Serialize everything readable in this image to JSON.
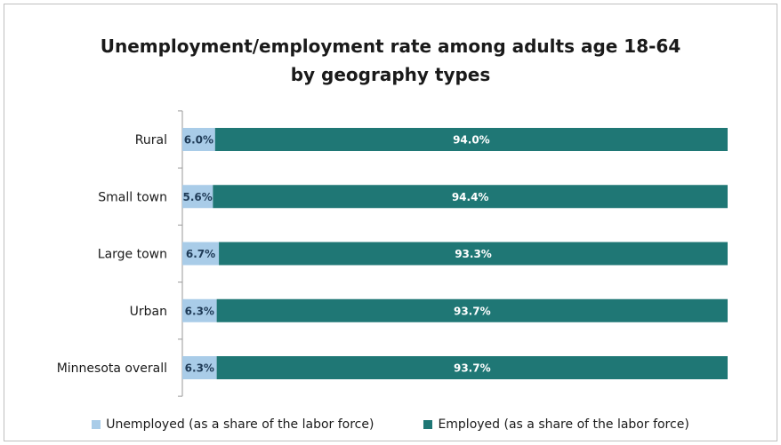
{
  "chart_data": {
    "type": "bar",
    "orientation": "horizontal",
    "stacked": true,
    "percent_stacked": true,
    "title": "Unemployment/employment rate among adults age 18-64",
    "subtitle": "by geography types",
    "categories": [
      "Rural",
      "Small town",
      "Large town",
      "Urban",
      "Minnesota overall"
    ],
    "series": [
      {
        "name": "Unemployed (as a share of the labor force)",
        "color": "#a9cce8",
        "values": [
          6.0,
          5.6,
          6.7,
          6.3,
          6.3
        ],
        "labels": [
          "6.0%",
          "5.6%",
          "6.7%",
          "6.3%",
          "6.3%"
        ]
      },
      {
        "name": "Employed (as a share of the labor force)",
        "color": "#1f7775",
        "values": [
          94.0,
          94.4,
          93.3,
          93.7,
          93.7
        ],
        "labels": [
          "94.0%",
          "94.4%",
          "93.3%",
          "93.7%",
          "93.7%"
        ]
      }
    ],
    "xlim": [
      0,
      100
    ],
    "grid": false,
    "legend": "bottom"
  }
}
